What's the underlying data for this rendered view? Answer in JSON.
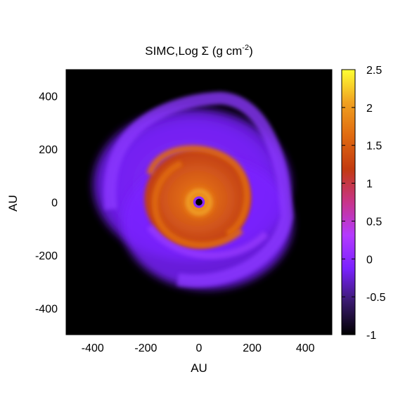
{
  "chart_data": {
    "type": "heatmap",
    "title_main": "SIMC,Log Σ (g cm",
    "title_exp": "-2",
    "title_tail": ")",
    "xlabel": "AU",
    "ylabel": "AU",
    "xlim": [
      -500,
      500
    ],
    "ylim": [
      -500,
      500
    ],
    "xticks": [
      -400,
      -200,
      0,
      200,
      400
    ],
    "yticks": [
      -400,
      -200,
      0,
      200,
      400
    ],
    "x_tick_labels": [
      "-400",
      "-200",
      "0",
      "200",
      "400"
    ],
    "y_tick_labels": [
      "-400",
      "-200",
      "0",
      "200",
      "400"
    ],
    "colorbar": {
      "range": [
        -1,
        2.5
      ],
      "ticks": [
        -1,
        -0.5,
        0,
        0.5,
        1,
        1.5,
        2,
        2.5
      ],
      "tick_labels": [
        "-1",
        "-0.5",
        "0",
        "0.5",
        "1",
        "1.5",
        "2",
        "2.5"
      ],
      "colormap": [
        "#000000",
        "#3a1a6e",
        "#7a22ff",
        "#b43aff",
        "#c8348a",
        "#c23a10",
        "#e06a10",
        "#f0a020",
        "#ffff33"
      ]
    },
    "background_color": "#000000",
    "structure": {
      "outer_envelope_radius_au": 400,
      "dense_disk_radius_au": 200,
      "inner_ring_radius_au": 60,
      "central_hole_radius_au": 15,
      "outer_envelope_level": 0,
      "dense_disk_level": 1,
      "spiral_arm_level": 1.5,
      "inner_ring_level": 1.8,
      "central_hole_level": -1
    }
  }
}
